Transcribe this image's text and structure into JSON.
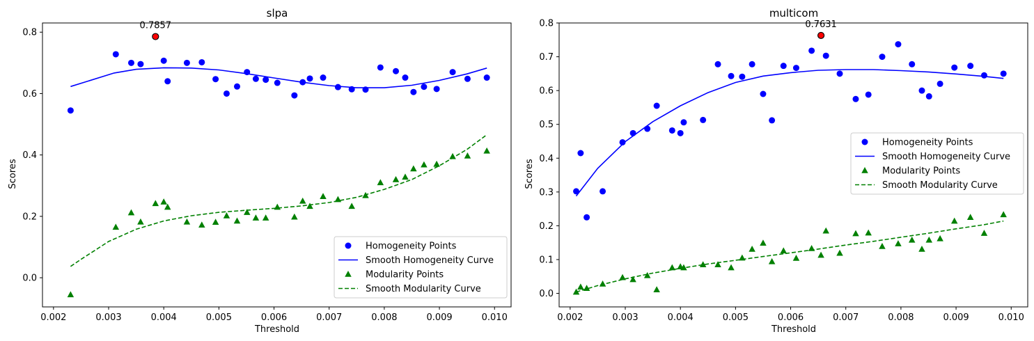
{
  "chart_data": [
    {
      "type": "scatter",
      "title": "slpa",
      "xlabel": "Threshold",
      "ylabel": "Scores",
      "xlim": [
        0.0018,
        0.0103
      ],
      "ylim": [
        -0.095,
        0.83
      ],
      "xticks": [
        0.002,
        0.003,
        0.004,
        0.005,
        0.006,
        0.007,
        0.008,
        0.009,
        0.01
      ],
      "xtick_labels": [
        "0.002",
        "0.003",
        "0.004",
        "0.005",
        "0.006",
        "0.007",
        "0.008",
        "0.009",
        "0.010"
      ],
      "yticks": [
        0.0,
        0.2,
        0.4,
        0.6,
        0.8
      ],
      "ytick_labels": [
        "0.0",
        "0.2",
        "0.4",
        "0.6",
        "0.8"
      ],
      "legend_position": "lower-right",
      "legend": [
        "Homogeneity Points",
        "Smooth Homogeneity Curve",
        "Modularity Points",
        "Smooth Modularity Curve"
      ],
      "colors": {
        "homogeneity": "#0000ff",
        "modularity": "#008000",
        "highlight": "#ff0000"
      },
      "series": [
        {
          "name": "Homogeneity Points",
          "kind": "points",
          "marker": "circle",
          "x": [
            0.00231,
            0.00313,
            0.00341,
            0.00358,
            0.00385,
            0.004,
            0.00407,
            0.00442,
            0.00469,
            0.00494,
            0.00514,
            0.00533,
            0.00551,
            0.00567,
            0.00585,
            0.00606,
            0.00637,
            0.00652,
            0.00665,
            0.00689,
            0.00716,
            0.00741,
            0.00766,
            0.00793,
            0.00821,
            0.00838,
            0.00853,
            0.00872,
            0.00895,
            0.00924,
            0.00951,
            0.00986
          ],
          "y": [
            0.545,
            0.728,
            0.7,
            0.696,
            0.7857,
            0.707,
            0.64,
            0.7,
            0.702,
            0.647,
            0.6,
            0.623,
            0.67,
            0.648,
            0.645,
            0.635,
            0.594,
            0.637,
            0.649,
            0.652,
            0.621,
            0.614,
            0.613,
            0.685,
            0.673,
            0.652,
            0.605,
            0.622,
            0.615,
            0.67,
            0.648,
            0.652
          ]
        },
        {
          "name": "Smooth Homogeneity Curve",
          "kind": "line",
          "style": "solid",
          "x": [
            0.00231,
            0.0031,
            0.0035,
            0.004,
            0.0045,
            0.005,
            0.0055,
            0.006,
            0.0065,
            0.007,
            0.0075,
            0.008,
            0.0085,
            0.009,
            0.0095,
            0.00986
          ],
          "y": [
            0.623,
            0.667,
            0.679,
            0.684,
            0.683,
            0.677,
            0.665,
            0.651,
            0.637,
            0.626,
            0.619,
            0.619,
            0.627,
            0.643,
            0.664,
            0.683
          ]
        },
        {
          "name": "Modularity Points",
          "kind": "points",
          "marker": "triangle",
          "x": [
            0.00231,
            0.00313,
            0.00341,
            0.00358,
            0.00385,
            0.004,
            0.00407,
            0.00442,
            0.00469,
            0.00494,
            0.00514,
            0.00533,
            0.00551,
            0.00567,
            0.00585,
            0.00606,
            0.00637,
            0.00652,
            0.00665,
            0.00689,
            0.00716,
            0.00741,
            0.00766,
            0.00793,
            0.00821,
            0.00838,
            0.00853,
            0.00872,
            0.00895,
            0.00924,
            0.00951,
            0.00986
          ],
          "y": [
            -0.055,
            0.165,
            0.212,
            0.182,
            0.242,
            0.247,
            0.23,
            0.182,
            0.172,
            0.181,
            0.202,
            0.185,
            0.213,
            0.195,
            0.195,
            0.23,
            0.198,
            0.25,
            0.233,
            0.265,
            0.255,
            0.233,
            0.268,
            0.31,
            0.32,
            0.328,
            0.355,
            0.368,
            0.37,
            0.395,
            0.397,
            0.413
          ]
        },
        {
          "name": "Smooth Modularity Curve",
          "kind": "line",
          "style": "dashed",
          "x": [
            0.00231,
            0.0025,
            0.003,
            0.0035,
            0.004,
            0.0045,
            0.005,
            0.0055,
            0.006,
            0.0065,
            0.007,
            0.0075,
            0.008,
            0.0085,
            0.009,
            0.0095,
            0.00986
          ],
          "y": [
            0.037,
            0.06,
            0.118,
            0.158,
            0.185,
            0.202,
            0.213,
            0.22,
            0.226,
            0.234,
            0.245,
            0.262,
            0.288,
            0.32,
            0.365,
            0.418,
            0.466
          ]
        }
      ],
      "highlight": {
        "x": 0.00385,
        "y": 0.7857,
        "label": "0.7857"
      }
    },
    {
      "type": "scatter",
      "title": "multicom",
      "xlabel": "Threshold",
      "ylabel": "Scores",
      "xlim": [
        0.0018,
        0.0103
      ],
      "ylim": [
        -0.04,
        0.8
      ],
      "xticks": [
        0.002,
        0.003,
        0.004,
        0.005,
        0.006,
        0.007,
        0.008,
        0.009,
        0.01
      ],
      "xtick_labels": [
        "0.002",
        "0.003",
        "0.004",
        "0.005",
        "0.006",
        "0.007",
        "0.008",
        "0.009",
        "0.010"
      ],
      "yticks": [
        0.0,
        0.1,
        0.2,
        0.3,
        0.4,
        0.5,
        0.6,
        0.7,
        0.8
      ],
      "ytick_labels": [
        "0.0",
        "0.1",
        "0.2",
        "0.3",
        "0.4",
        "0.5",
        "0.6",
        "0.7",
        "0.8"
      ],
      "legend_position": "center-right",
      "legend": [
        "Homogeneity Points",
        "Smooth Homogeneity Curve",
        "Modularity Points",
        "Smooth Modularity Curve"
      ],
      "colors": {
        "homogeneity": "#0000ff",
        "modularity": "#008000",
        "highlight": "#ff0000"
      },
      "series": [
        {
          "name": "Homogeneity Points",
          "kind": "points",
          "marker": "circle",
          "x": [
            0.00211,
            0.00219,
            0.0023,
            0.00259,
            0.00295,
            0.00314,
            0.0034,
            0.00357,
            0.00385,
            0.004,
            0.00406,
            0.00441,
            0.00468,
            0.00492,
            0.00512,
            0.0053,
            0.0055,
            0.00566,
            0.00587,
            0.0061,
            0.00638,
            0.00655,
            0.00664,
            0.00689,
            0.00718,
            0.00741,
            0.00766,
            0.00795,
            0.0082,
            0.00838,
            0.00851,
            0.00871,
            0.00897,
            0.00926,
            0.00951,
            0.00986
          ],
          "y": [
            0.302,
            0.415,
            0.225,
            0.302,
            0.447,
            0.474,
            0.487,
            0.555,
            0.482,
            0.474,
            0.506,
            0.513,
            0.678,
            0.643,
            0.641,
            0.678,
            0.59,
            0.512,
            0.673,
            0.667,
            0.718,
            0.7631,
            0.703,
            0.65,
            0.575,
            0.588,
            0.7,
            0.737,
            0.678,
            0.6,
            0.583,
            0.62,
            0.668,
            0.673,
            0.645,
            0.65
          ]
        },
        {
          "name": "Smooth Homogeneity Curve",
          "kind": "line",
          "style": "solid",
          "x": [
            0.00211,
            0.0025,
            0.003,
            0.0035,
            0.004,
            0.0045,
            0.005,
            0.0055,
            0.006,
            0.0065,
            0.007,
            0.0075,
            0.008,
            0.0085,
            0.009,
            0.0095,
            0.00986
          ],
          "y": [
            0.288,
            0.37,
            0.449,
            0.508,
            0.555,
            0.594,
            0.624,
            0.643,
            0.653,
            0.66,
            0.662,
            0.662,
            0.659,
            0.655,
            0.649,
            0.642,
            0.636
          ]
        },
        {
          "name": "Modularity Points",
          "kind": "points",
          "marker": "triangle",
          "x": [
            0.00211,
            0.00219,
            0.0023,
            0.00259,
            0.00295,
            0.00314,
            0.0034,
            0.00357,
            0.00385,
            0.004,
            0.00406,
            0.00441,
            0.00468,
            0.00492,
            0.00512,
            0.0053,
            0.0055,
            0.00566,
            0.00587,
            0.0061,
            0.00638,
            0.00655,
            0.00664,
            0.00689,
            0.00718,
            0.00741,
            0.00766,
            0.00795,
            0.0082,
            0.00838,
            0.00851,
            0.00871,
            0.00897,
            0.00926,
            0.00951,
            0.00986
          ],
          "y": [
            0.004,
            0.019,
            0.015,
            0.028,
            0.047,
            0.041,
            0.053,
            0.011,
            0.076,
            0.079,
            0.076,
            0.085,
            0.085,
            0.076,
            0.105,
            0.131,
            0.149,
            0.094,
            0.126,
            0.104,
            0.133,
            0.113,
            0.185,
            0.119,
            0.177,
            0.179,
            0.139,
            0.147,
            0.158,
            0.131,
            0.158,
            0.162,
            0.214,
            0.225,
            0.178,
            0.233
          ]
        },
        {
          "name": "Smooth Modularity Curve",
          "kind": "line",
          "style": "dashed",
          "x": [
            0.00211,
            0.0025,
            0.003,
            0.0035,
            0.004,
            0.0045,
            0.005,
            0.0055,
            0.006,
            0.0065,
            0.007,
            0.0075,
            0.008,
            0.0085,
            0.009,
            0.0095,
            0.00986
          ],
          "y": [
            0.004,
            0.023,
            0.043,
            0.06,
            0.074,
            0.087,
            0.098,
            0.109,
            0.12,
            0.131,
            0.143,
            0.154,
            0.166,
            0.178,
            0.191,
            0.203,
            0.214
          ]
        }
      ],
      "highlight": {
        "x": 0.00655,
        "y": 0.7631,
        "label": "0.7631"
      }
    }
  ]
}
